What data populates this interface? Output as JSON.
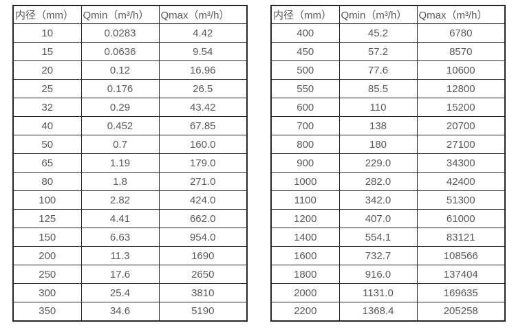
{
  "page": {
    "background_color": "#ffffff",
    "text_color": "#595959",
    "border_color": "#262626"
  },
  "tables": [
    {
      "name": "flow-table-small-diameters",
      "headers": [
        "内径（mm）",
        "Qmin（m³/h）",
        "Qmax（m³/h）"
      ],
      "rows": [
        [
          "10",
          "0.0283",
          "4.42"
        ],
        [
          "15",
          "0.0636",
          "9.54"
        ],
        [
          "20",
          "0.12",
          "16.96"
        ],
        [
          "25",
          "0.176",
          "26.5"
        ],
        [
          "32",
          "0.29",
          "43.42"
        ],
        [
          "40",
          "0.452",
          "67.85"
        ],
        [
          "50",
          "0.7",
          "160.0"
        ],
        [
          "65",
          "1.19",
          "179.0"
        ],
        [
          "80",
          "1.8",
          "271.0"
        ],
        [
          "100",
          "2.82",
          "424.0"
        ],
        [
          "125",
          "4.41",
          "662.0"
        ],
        [
          "150",
          "6.63",
          "954.0"
        ],
        [
          "200",
          "11.3",
          "1690"
        ],
        [
          "250",
          "17.6",
          "2650"
        ],
        [
          "300",
          "25.4",
          "3810"
        ],
        [
          "350",
          "34.6",
          "5190"
        ]
      ]
    },
    {
      "name": "flow-table-large-diameters",
      "headers": [
        "内径（mm）",
        "Qmin（m³/h）",
        "Qmax（m³/h）"
      ],
      "rows": [
        [
          "400",
          "45.2",
          "6780"
        ],
        [
          "450",
          "57.2",
          "8570"
        ],
        [
          "500",
          "77.6",
          "10600"
        ],
        [
          "550",
          "85.5",
          "12800"
        ],
        [
          "600",
          "110",
          "15200"
        ],
        [
          "700",
          "138",
          "20700"
        ],
        [
          "800",
          "180",
          "27100"
        ],
        [
          "900",
          "229.0",
          "34300"
        ],
        [
          "1000",
          "282.0",
          "42400"
        ],
        [
          "1100",
          "342.0",
          "51300"
        ],
        [
          "1200",
          "407.0",
          "61000"
        ],
        [
          "1400",
          "554.1",
          "83121"
        ],
        [
          "1600",
          "732.7",
          "108566"
        ],
        [
          "1800",
          "916.0",
          "137404"
        ],
        [
          "2000",
          "1131.0",
          "169635"
        ],
        [
          "2200",
          "1368.4",
          "205258"
        ]
      ]
    }
  ],
  "chart_data": {
    "type": "table",
    "title": "",
    "columns": [
      "内径（mm）",
      "Qmin（m³/h）",
      "Qmax（m³/h）"
    ]
  }
}
